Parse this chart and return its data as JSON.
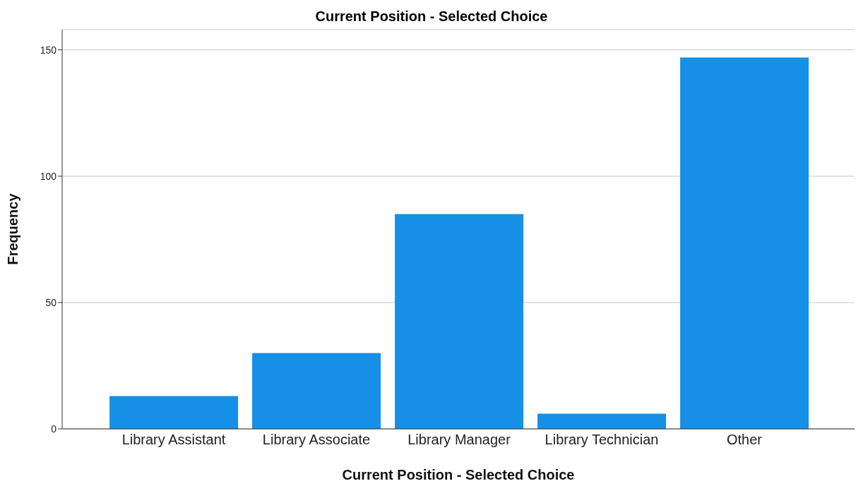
{
  "chart_data": {
    "type": "bar",
    "title": "Current Position - Selected Choice",
    "xlabel": "Current Position - Selected Choice",
    "ylabel": "Frequency",
    "categories": [
      "Library Assistant",
      "Library Associate",
      "Library Manager",
      "Library Technician",
      "Other"
    ],
    "values": [
      13,
      30,
      85,
      6,
      147
    ],
    "color": "#1590e6",
    "ylim": [
      0,
      158
    ],
    "yticks": [
      0,
      50,
      100,
      150
    ],
    "grid": "y"
  }
}
